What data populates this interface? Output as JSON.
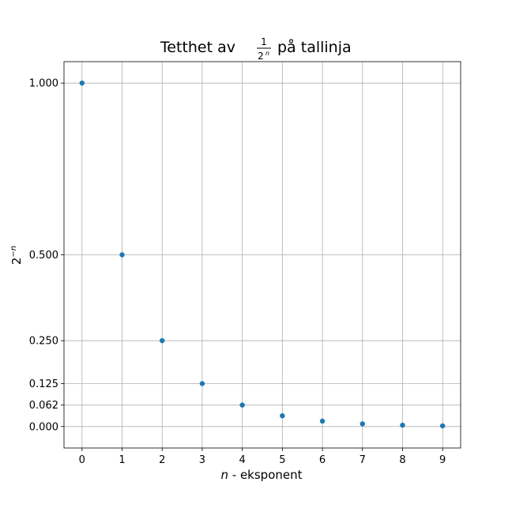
{
  "chart_data": {
    "type": "scatter",
    "title_prefix": "Tetthet av",
    "title_frac_numerator": "1",
    "title_frac_denominator_base": "2",
    "title_frac_denominator_exp": "n",
    "title_suffix": "på tallinja",
    "xlabel_italic": "n",
    "xlabel_rest": " - eksponent",
    "ylabel_base": "2",
    "ylabel_exp": "−n",
    "x": [
      0,
      1,
      2,
      3,
      4,
      5,
      6,
      7,
      8,
      9
    ],
    "y": [
      1.0,
      0.5,
      0.25,
      0.125,
      0.0625,
      0.03125,
      0.015625,
      0.0078125,
      0.00390625,
      0.001953125
    ],
    "xticks": [
      0,
      1,
      2,
      3,
      4,
      5,
      6,
      7,
      8,
      9
    ],
    "xtick_labels": [
      "0",
      "1",
      "2",
      "3",
      "4",
      "5",
      "6",
      "7",
      "8",
      "9"
    ],
    "yticks": [
      0.0,
      0.0625,
      0.125,
      0.25,
      0.5,
      1.0
    ],
    "ytick_labels": [
      "0.000",
      "0.062",
      "0.125",
      "0.250",
      "0.500",
      "1.000"
    ],
    "xlim": [
      -0.45,
      9.45
    ],
    "ylim": [
      -0.0625,
      1.0625
    ],
    "grid": true,
    "marker_color": "#1f77b4"
  }
}
